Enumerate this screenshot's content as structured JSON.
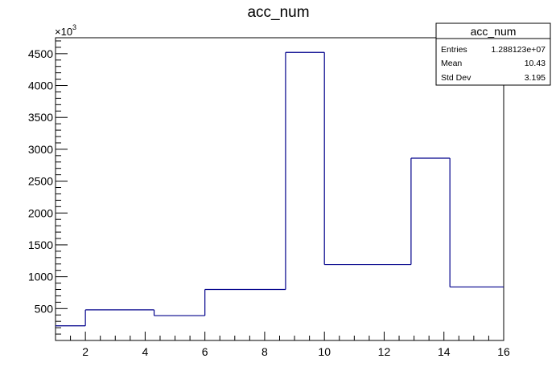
{
  "chart_data": {
    "type": "bar",
    "title": "acc_num",
    "xlabel": "",
    "ylabel": "",
    "y_multiplier_label": "×10",
    "y_multiplier_exponent": "3",
    "xlim": [
      1,
      16
    ],
    "ylim": [
      0,
      4750
    ],
    "x_tick_labels": [
      "2",
      "4",
      "6",
      "8",
      "10",
      "12",
      "14",
      "16"
    ],
    "y_tick_labels": [
      "500",
      "1000",
      "1500",
      "2000",
      "2500",
      "3000",
      "3500",
      "4000",
      "4500"
    ],
    "bins": [
      {
        "x_low": 1.0,
        "x_high": 2.0,
        "value": 230
      },
      {
        "x_low": 2.0,
        "x_high": 4.3,
        "value": 480
      },
      {
        "x_low": 4.3,
        "x_high": 6.0,
        "value": 390
      },
      {
        "x_low": 6.0,
        "x_high": 8.7,
        "value": 800
      },
      {
        "x_low": 8.7,
        "x_high": 10.0,
        "value": 4520
      },
      {
        "x_low": 10.0,
        "x_high": 12.9,
        "value": 1190
      },
      {
        "x_low": 12.9,
        "x_high": 14.2,
        "value": 2860
      },
      {
        "x_low": 14.2,
        "x_high": 16.0,
        "value": 840
      }
    ],
    "line_color": "#00008b",
    "grid": false,
    "legend": "none"
  },
  "stats_box": {
    "title": "acc_num",
    "rows": [
      {
        "label": "Entries",
        "value": "1.288123e+07"
      },
      {
        "label": "Mean",
        "value": "10.43"
      },
      {
        "label": "Std Dev",
        "value": "3.195"
      }
    ]
  }
}
